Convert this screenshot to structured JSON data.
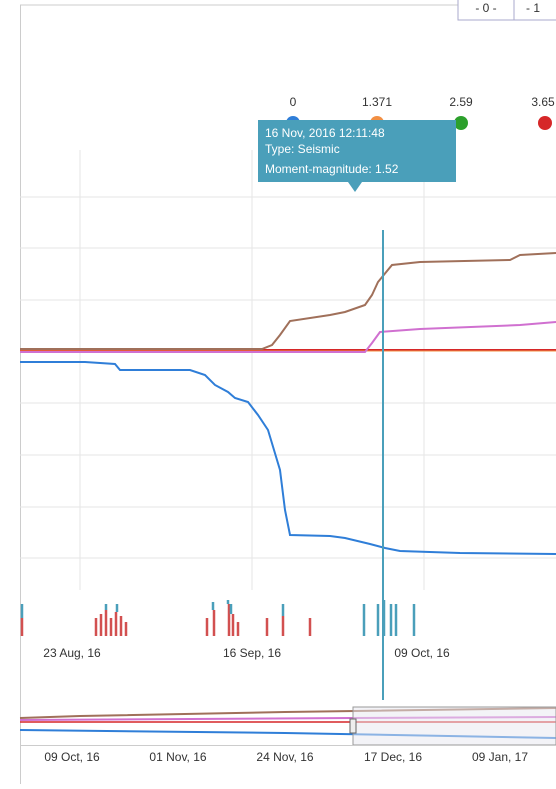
{
  "buttons": [
    "- 0 -",
    "- 1"
  ],
  "legend": [
    "0",
    "1.371",
    "2.59",
    "3.65"
  ],
  "tooltip": {
    "date": "16 Nov, 2016 12:11:48",
    "type": "Type: Seismic",
    "magnitude": "Moment-magnitude: 1.52"
  },
  "x_axis": [
    "23 Aug, 16",
    "16 Sep, 16",
    "09 Oct, 16"
  ],
  "navigator_axis": [
    "09 Oct, 16",
    "01 Nov, 16",
    "24 Nov, 16",
    "17 Dec, 16",
    "09 Jan, 17"
  ]
}
